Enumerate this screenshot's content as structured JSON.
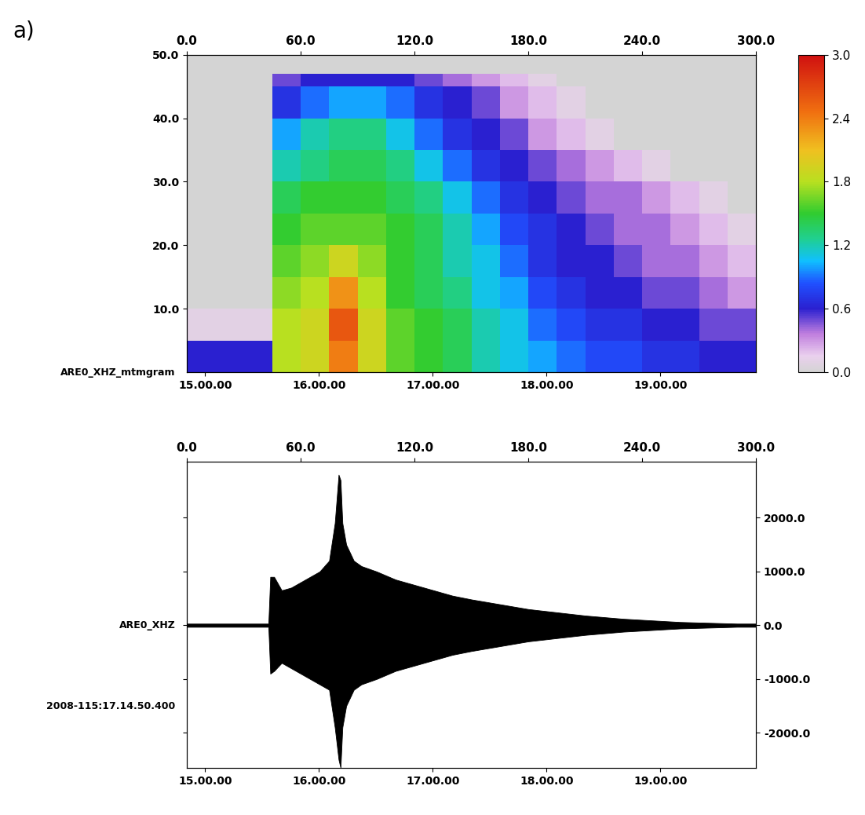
{
  "panel_label": "a)",
  "chart_data": [
    {
      "type": "heatmap",
      "label": "ARE0_XHZ_mtmgram",
      "x_edges": [
        0,
        15,
        30,
        45,
        60,
        75,
        90,
        105,
        120,
        135,
        150,
        165,
        180,
        195,
        210,
        225,
        240,
        255,
        270,
        285,
        300
      ],
      "y_edges": [
        0,
        5,
        10,
        15,
        20,
        25,
        30,
        35,
        40,
        45,
        47,
        50
      ],
      "cells": [
        [
          0.6,
          0.6,
          0.6,
          1.8,
          1.9,
          2.4,
          1.9,
          1.6,
          1.5,
          1.4,
          1.2,
          1.1,
          1.0,
          0.9,
          0.8,
          0.8,
          0.7,
          0.7,
          0.6,
          0.6
        ],
        [
          0.1,
          0.1,
          0.1,
          1.8,
          1.9,
          2.6,
          1.9,
          1.6,
          1.5,
          1.4,
          1.2,
          1.1,
          0.9,
          0.8,
          0.7,
          0.7,
          0.6,
          0.6,
          0.5,
          0.5
        ],
        [
          0,
          0,
          0,
          1.7,
          1.8,
          2.3,
          1.8,
          1.5,
          1.4,
          1.3,
          1.1,
          1.0,
          0.8,
          0.7,
          0.6,
          0.6,
          0.5,
          0.5,
          0.4,
          0.3
        ],
        [
          0,
          0,
          0,
          1.6,
          1.7,
          1.9,
          1.7,
          1.5,
          1.4,
          1.2,
          1.1,
          0.9,
          0.7,
          0.6,
          0.6,
          0.5,
          0.4,
          0.4,
          0.3,
          0.2
        ],
        [
          0,
          0,
          0,
          1.5,
          1.6,
          1.6,
          1.6,
          1.5,
          1.4,
          1.2,
          1.0,
          0.8,
          0.7,
          0.6,
          0.5,
          0.4,
          0.4,
          0.3,
          0.2,
          0.1
        ],
        [
          0,
          0,
          0,
          1.4,
          1.5,
          1.5,
          1.5,
          1.4,
          1.3,
          1.1,
          0.9,
          0.7,
          0.6,
          0.5,
          0.4,
          0.4,
          0.3,
          0.2,
          0.1,
          0
        ],
        [
          0,
          0,
          0,
          1.2,
          1.3,
          1.4,
          1.4,
          1.3,
          1.1,
          0.9,
          0.7,
          0.6,
          0.5,
          0.4,
          0.3,
          0.2,
          0.1,
          0,
          0,
          0
        ],
        [
          0,
          0,
          0,
          1.0,
          1.2,
          1.3,
          1.3,
          1.1,
          0.9,
          0.7,
          0.6,
          0.5,
          0.3,
          0.2,
          0.1,
          0,
          0,
          0,
          0,
          0
        ],
        [
          0,
          0,
          0,
          0.7,
          0.9,
          1.0,
          1.0,
          0.9,
          0.7,
          0.6,
          0.5,
          0.3,
          0.2,
          0.1,
          0,
          0,
          0,
          0,
          0,
          0
        ],
        [
          0,
          0,
          0,
          0.5,
          0.6,
          0.6,
          0.6,
          0.6,
          0.5,
          0.4,
          0.3,
          0.2,
          0.1,
          0,
          0,
          0,
          0,
          0,
          0,
          0
        ],
        [
          0,
          0,
          0,
          0,
          0,
          0,
          0,
          0,
          0,
          0,
          0,
          0,
          0,
          0,
          0,
          0,
          0,
          0,
          0,
          0
        ]
      ],
      "xlim": [
        0,
        300
      ],
      "ylim": [
        0,
        50
      ],
      "xticks": [
        {
          "value": 9.6,
          "label": "15.00.00"
        },
        {
          "value": 69.6,
          "label": "16.00.00"
        },
        {
          "value": 129.6,
          "label": "17.00.00"
        },
        {
          "value": 189.6,
          "label": "18.00.00"
        },
        {
          "value": 249.6,
          "label": "19.00.00"
        }
      ],
      "x2lim": [
        0,
        300
      ],
      "x2ticks": [
        {
          "value": 0,
          "label": "0.0"
        },
        {
          "value": 60,
          "label": "60.0"
        },
        {
          "value": 120,
          "label": "120.0"
        },
        {
          "value": 180,
          "label": "180.0"
        },
        {
          "value": 240,
          "label": "240.0"
        },
        {
          "value": 300,
          "label": "300.0"
        }
      ],
      "yticks": [
        {
          "value": 10,
          "label": "10.0"
        },
        {
          "value": 20,
          "label": "20.0"
        },
        {
          "value": 30,
          "label": "30.0"
        },
        {
          "value": 40,
          "label": "40.0"
        },
        {
          "value": 50,
          "label": "50.0"
        }
      ],
      "colorbar_range": [
        0,
        3
      ],
      "colorbar_ticks": [
        {
          "value": 0,
          "label": "0.0"
        },
        {
          "value": 0.6,
          "label": "0.6"
        },
        {
          "value": 1.2,
          "label": "1.2"
        },
        {
          "value": 1.8,
          "label": "1.8"
        },
        {
          "value": 2.4,
          "label": "2.4"
        },
        {
          "value": 3,
          "label": "3.0"
        }
      ]
    },
    {
      "type": "waveform",
      "label": "ARE0_XHZ",
      "start_time": "2008-115:17.14.50.400",
      "color": "#000000",
      "x": [
        0,
        10,
        20,
        30,
        40,
        43,
        44,
        46,
        50,
        55,
        60,
        65,
        70,
        75,
        78,
        80,
        81,
        82,
        84,
        88,
        92,
        100,
        110,
        120,
        130,
        140,
        150,
        160,
        170,
        180,
        190,
        200,
        210,
        220,
        230,
        240,
        250,
        260,
        270,
        280,
        290,
        300
      ],
      "values_upper": [
        30,
        30,
        30,
        30,
        30,
        30,
        900,
        900,
        650,
        700,
        800,
        900,
        1000,
        1200,
        1900,
        2800,
        2700,
        1900,
        1500,
        1200,
        1100,
        1000,
        850,
        750,
        650,
        550,
        480,
        420,
        360,
        300,
        260,
        220,
        180,
        150,
        120,
        100,
        80,
        60,
        50,
        40,
        30,
        30
      ],
      "values_lower": [
        -30,
        -30,
        -30,
        -30,
        -30,
        -30,
        -900,
        -850,
        -700,
        -800,
        -900,
        -1000,
        -1100,
        -1200,
        -1900,
        -2500,
        -2650,
        -1900,
        -1500,
        -1200,
        -1100,
        -1000,
        -850,
        -750,
        -650,
        -550,
        -480,
        -420,
        -360,
        -300,
        -260,
        -220,
        -180,
        -150,
        -120,
        -100,
        -80,
        -60,
        -50,
        -40,
        -30,
        -30
      ],
      "xlim": [
        0,
        300
      ],
      "ylim": [
        -2650,
        3050
      ],
      "xticks": [
        {
          "value": 9.6,
          "label": "15.00.00"
        },
        {
          "value": 69.6,
          "label": "16.00.00"
        },
        {
          "value": 129.6,
          "label": "17.00.00"
        },
        {
          "value": 189.6,
          "label": "18.00.00"
        },
        {
          "value": 249.6,
          "label": "19.00.00"
        }
      ],
      "x2lim": [
        0,
        300
      ],
      "x2ticks": [
        {
          "value": 0,
          "label": "0.0"
        },
        {
          "value": 60,
          "label": "60.0"
        },
        {
          "value": 120,
          "label": "120.0"
        },
        {
          "value": 180,
          "label": "180.0"
        },
        {
          "value": 240,
          "label": "240.0"
        },
        {
          "value": 300,
          "label": "300.0"
        }
      ],
      "yticks": [
        {
          "value": -2000,
          "label": "-2000.0"
        },
        {
          "value": -1000,
          "label": "-1000.0"
        },
        {
          "value": 0,
          "label": "0.0"
        },
        {
          "value": 1000,
          "label": "1000.0"
        },
        {
          "value": 2000,
          "label": "2000.0"
        }
      ]
    }
  ]
}
